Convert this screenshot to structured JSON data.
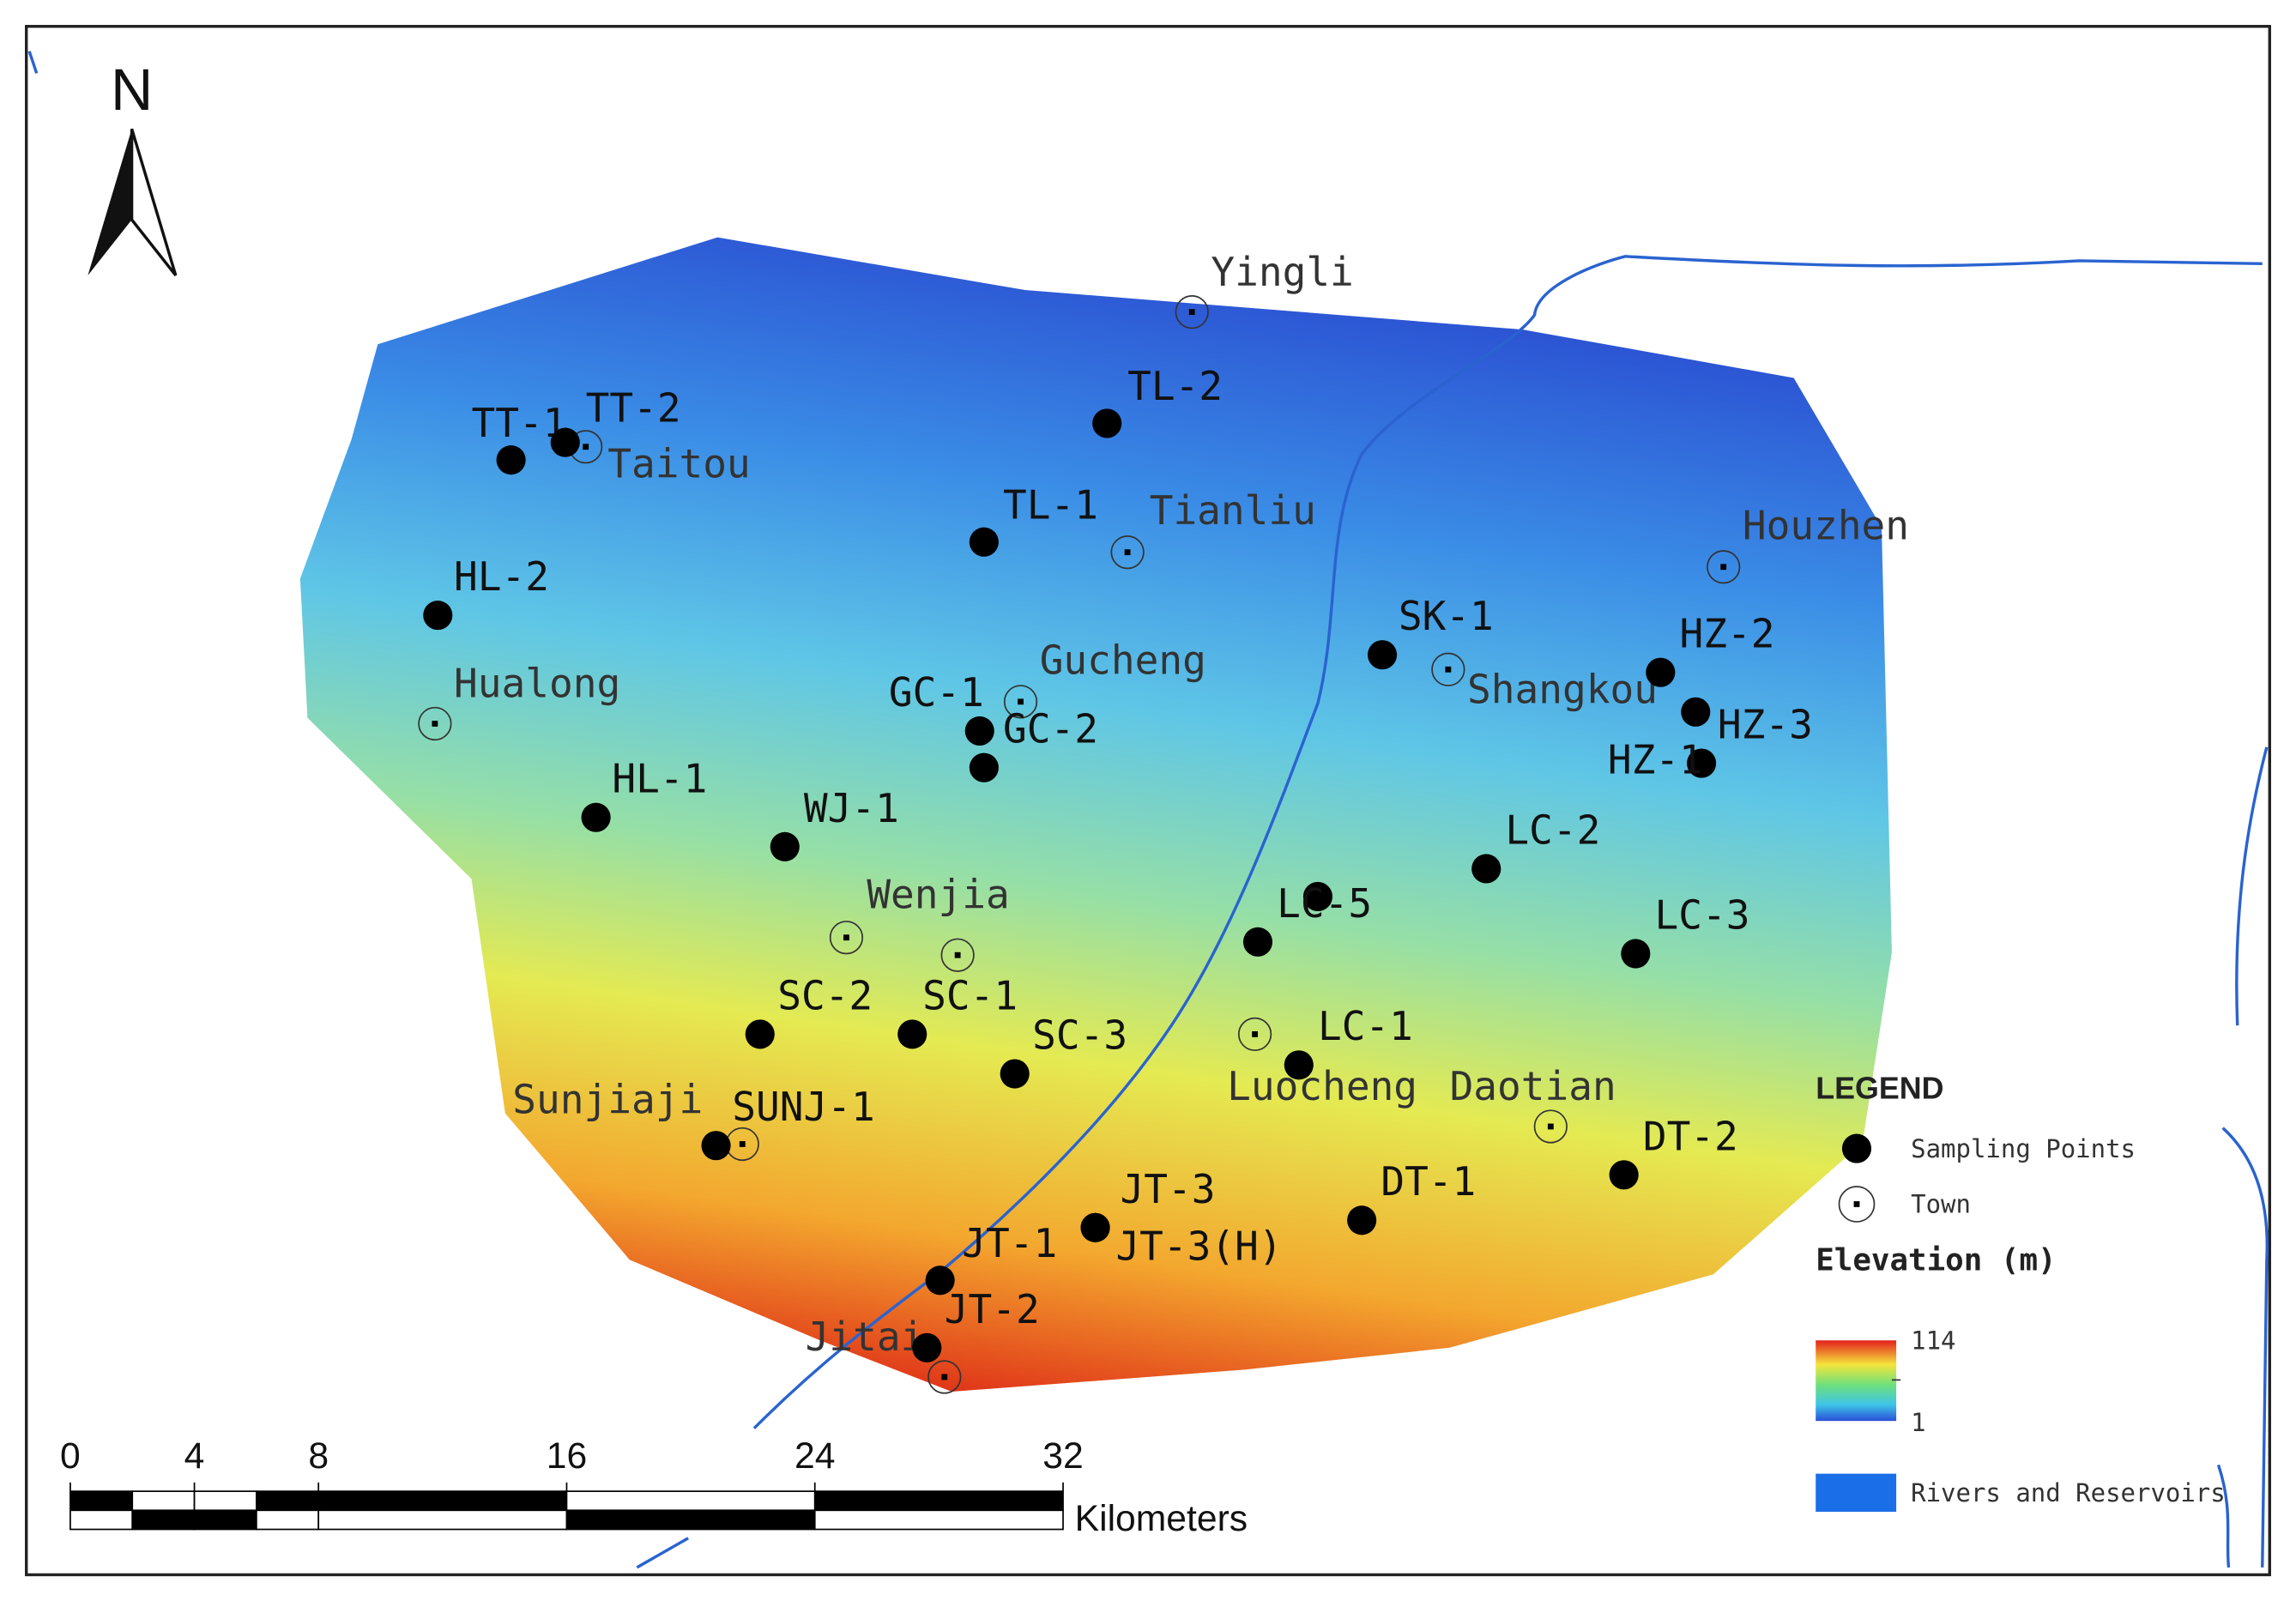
{
  "north": "N",
  "sampling_points": [
    "TT-1",
    "TT-2",
    "TL-2",
    "TL-1",
    "HL-2",
    "SK-1",
    "HZ-2",
    "HZ-3",
    "HZ-1",
    "GC-1",
    "GC-2",
    "HL-1",
    "WJ-1",
    "LC-2",
    "LC-5",
    "LC-3",
    "SC-2",
    "SC-1",
    "SC-3",
    "LC-1",
    "SUNJ-1",
    "DT-2",
    "DT-1",
    "JT-3",
    "JT-3(H)",
    "JT-1",
    "JT-2"
  ],
  "towns": [
    "Yingli",
    "Taitou",
    "Tianliu",
    "Houzhen",
    "Gucheng",
    "Hualong",
    "Shangkou",
    "Wenjia",
    "Luocheng",
    "Daotian",
    "Sunjiaji",
    "Jitai"
  ],
  "legend": {
    "title": "LEGEND",
    "sampling": "Sampling Points",
    "town": "Town",
    "elevation_title": "Elevation (m)",
    "elevation_max": 114,
    "elevation_min": 1,
    "water": "Rivers and Reservoirs"
  },
  "scale_bar": {
    "ticks": [
      0,
      4,
      8,
      16,
      24,
      32
    ],
    "unit": "Kilometers"
  }
}
